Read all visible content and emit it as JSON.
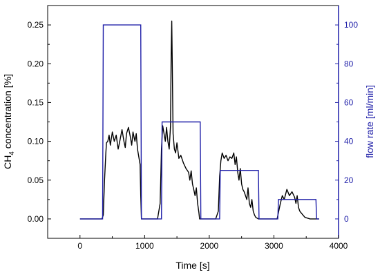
{
  "chart_data": {
    "type": "line",
    "xlabel": "Time [s]",
    "xlim": [
      -500,
      4000
    ],
    "xticks": [
      0,
      1000,
      2000,
      3000,
      4000
    ],
    "ylabel_left": {
      "main": "CH",
      "sub": "4",
      "rest": " concentration [%]"
    },
    "ylim_left": [
      -0.025,
      0.275
    ],
    "yticks_left": [
      0.0,
      0.05,
      0.1,
      0.15,
      0.2,
      0.25
    ],
    "ylabel_right": "flow rate [ml/min]",
    "ylim_right": [
      -10,
      110
    ],
    "yticks_right": [
      0,
      20,
      40,
      60,
      80,
      100
    ],
    "colors": {
      "ch4": "#000000",
      "flow": "#1f1fa8",
      "right_axis": "#1f1fa8"
    },
    "series": [
      {
        "axis": "left",
        "x": [
          0,
          340,
          360,
          380,
          400,
          410,
          430,
          450,
          470,
          500,
          530,
          560,
          590,
          620,
          650,
          680,
          700,
          720,
          750,
          780,
          800,
          820,
          850,
          870,
          890,
          910,
          930,
          940,
          950,
          1200,
          1240,
          1260,
          1280,
          1300,
          1320,
          1340,
          1360,
          1380,
          1400,
          1410,
          1420,
          1430,
          1440,
          1460,
          1480,
          1500,
          1530,
          1560,
          1600,
          1640,
          1680,
          1700,
          1720,
          1740,
          1760,
          1780,
          1800,
          1820,
          1840,
          1850,
          2100,
          2140,
          2160,
          2180,
          2200,
          2230,
          2260,
          2290,
          2320,
          2350,
          2380,
          2400,
          2420,
          2440,
          2460,
          2480,
          2500,
          2520,
          2540,
          2560,
          2580,
          2600,
          2620,
          2640,
          2660,
          2680,
          2700,
          2720,
          2760,
          3050,
          3080,
          3100,
          3130,
          3160,
          3200,
          3240,
          3280,
          3320,
          3340,
          3360,
          3380,
          3400,
          3420,
          3450,
          3480,
          3520,
          3560,
          3600,
          3700
        ],
        "y": [
          0.0,
          0.0,
          0.005,
          0.05,
          0.085,
          0.098,
          0.1,
          0.108,
          0.095,
          0.112,
          0.1,
          0.108,
          0.09,
          0.102,
          0.115,
          0.1,
          0.092,
          0.11,
          0.118,
          0.105,
          0.095,
          0.112,
          0.1,
          0.11,
          0.09,
          0.08,
          0.07,
          0.03,
          0.0,
          0.0,
          0.02,
          0.09,
          0.12,
          0.11,
          0.1,
          0.118,
          0.1,
          0.09,
          0.12,
          0.21,
          0.255,
          0.18,
          0.11,
          0.09,
          0.085,
          0.098,
          0.078,
          0.082,
          0.072,
          0.065,
          0.06,
          0.05,
          0.062,
          0.045,
          0.038,
          0.03,
          0.04,
          0.02,
          0.008,
          0.0,
          0.0,
          0.01,
          0.055,
          0.075,
          0.085,
          0.078,
          0.082,
          0.075,
          0.08,
          0.078,
          0.085,
          0.07,
          0.08,
          0.06,
          0.05,
          0.065,
          0.045,
          0.038,
          0.035,
          0.03,
          0.025,
          0.04,
          0.02,
          0.015,
          0.025,
          0.01,
          0.005,
          0.002,
          0.0,
          0.0,
          0.012,
          0.02,
          0.03,
          0.025,
          0.038,
          0.03,
          0.035,
          0.028,
          0.02,
          0.03,
          0.015,
          0.01,
          0.008,
          0.005,
          0.002,
          0.001,
          0.0,
          0.0,
          0.0
        ]
      },
      {
        "axis": "right",
        "x": [
          0,
          350,
          360,
          940,
          950,
          1260,
          1270,
          1860,
          1870,
          2160,
          2170,
          2760,
          2770,
          3060,
          3070,
          3650,
          3660,
          3700
        ],
        "y": [
          0,
          0,
          100,
          100,
          0,
          0,
          50,
          50,
          0,
          0,
          25,
          25,
          0,
          0,
          10,
          10,
          0,
          0
        ]
      }
    ]
  }
}
